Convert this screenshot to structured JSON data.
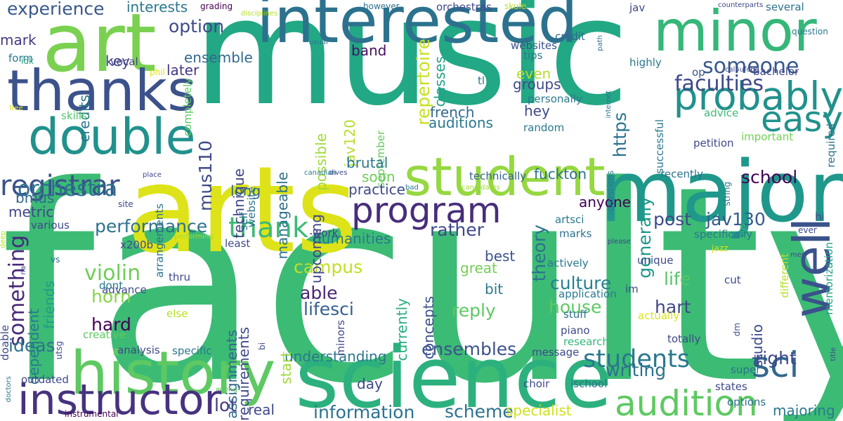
{
  "cloud": {
    "words": [
      {
        "text": "faculty",
        "color": "#3cbb75"
      },
      {
        "text": "music",
        "color": "#22a884"
      },
      {
        "text": "arts",
        "color": "#dde318"
      },
      {
        "text": "science",
        "color": "#2cb17e"
      },
      {
        "text": "major",
        "color": "#1f988b"
      },
      {
        "text": "interested",
        "color": "#2c728e"
      },
      {
        "text": "art",
        "color": "#7ad151"
      },
      {
        "text": "history",
        "color": "#5ec962"
      },
      {
        "text": "thanks",
        "color": "#3b528b"
      },
      {
        "text": "double",
        "color": "#21918c"
      },
      {
        "text": "student",
        "color": "#95d840"
      },
      {
        "text": "minor",
        "color": "#35b779"
      },
      {
        "text": "instructor",
        "color": "#46327e"
      },
      {
        "text": "well",
        "color": "#3b528b"
      },
      {
        "text": "probably",
        "color": "#21918c"
      },
      {
        "text": "audition",
        "color": "#5ec962"
      },
      {
        "text": "program",
        "color": "#472d7b"
      },
      {
        "text": "easy",
        "color": "#21918c"
      },
      {
        "text": "sci",
        "color": "#31688e"
      },
      {
        "text": "registrar",
        "color": "#3b528b"
      },
      {
        "text": "thank",
        "color": "#3cbb75"
      },
      {
        "text": "students",
        "color": "#2a788e"
      },
      {
        "text": "someone",
        "color": "#38588c"
      },
      {
        "text": "faculties",
        "color": "#3e4989"
      },
      {
        "text": "orchestra",
        "color": "#2c728e"
      },
      {
        "text": "performance",
        "color": "#2c728e"
      },
      {
        "text": "something",
        "color": "#472a7a"
      },
      {
        "text": "violin",
        "color": "#6ece58"
      },
      {
        "text": "experience",
        "color": "#38588c"
      },
      {
        "text": "option",
        "color": "#3e4989"
      },
      {
        "text": "ensembles",
        "color": "#3b528b"
      },
      {
        "text": "rather",
        "color": "#3e4989"
      },
      {
        "text": "post",
        "color": "#3e4989"
      },
      {
        "text": "culture",
        "color": "#277f8e"
      },
      {
        "text": "house",
        "color": "#5ec962"
      },
      {
        "text": "life",
        "color": "#54c568"
      },
      {
        "text": "hart",
        "color": "#404688"
      },
      {
        "text": "writing",
        "color": "#2c728e"
      },
      {
        "text": "right",
        "color": "#3e4989"
      },
      {
        "text": "school",
        "color": "#440154"
      },
      {
        "text": "jav130",
        "color": "#375b8d"
      },
      {
        "text": "campus",
        "color": "#c2df23"
      },
      {
        "text": "horn",
        "color": "#86d549"
      },
      {
        "text": "hard",
        "color": "#440154"
      },
      {
        "text": "able",
        "color": "#482475"
      },
      {
        "text": "lifesci",
        "color": "#35608d"
      },
      {
        "text": "reply",
        "color": "#5ec962"
      },
      {
        "text": "ideas",
        "color": "#2c728e"
      },
      {
        "text": "lot",
        "color": "#443983"
      },
      {
        "text": "information",
        "color": "#2c728e"
      },
      {
        "text": "scheme",
        "color": "#2c728e"
      },
      {
        "text": "specialist",
        "color": "#d0e11c"
      },
      {
        "text": "majoring",
        "color": "#2a788e"
      },
      {
        "text": "anyone",
        "color": "#440154"
      },
      {
        "text": "generally",
        "color": "#1f988b"
      },
      {
        "text": "https",
        "color": "#2c728e"
      },
      {
        "text": "theory",
        "color": "#2c728e"
      },
      {
        "text": "hey",
        "color": "#3e4989"
      },
      {
        "text": "groups",
        "color": "#3e4989"
      },
      {
        "text": "even",
        "color": "#b5de2b"
      },
      {
        "text": "repertoire",
        "color": "#c8e020"
      },
      {
        "text": "french",
        "color": "#31688e"
      },
      {
        "text": "auditions",
        "color": "#2a788e"
      },
      {
        "text": "mus110",
        "color": "#3e4989"
      },
      {
        "text": "technique",
        "color": "#404688"
      },
      {
        "text": "manageable",
        "color": "#2c728e"
      },
      {
        "text": "interests",
        "color": "#2a788e"
      },
      {
        "text": "band",
        "color": "#470e61"
      },
      {
        "text": "key",
        "color": "#404688"
      },
      {
        "text": "later",
        "color": "#453781"
      },
      {
        "text": "ensemble",
        "color": "#31688e"
      },
      {
        "text": "credits",
        "color": "#2a788e"
      },
      {
        "text": "mark",
        "color": "#443983"
      },
      {
        "text": "form",
        "color": "#2a788e"
      },
      {
        "text": "vocal",
        "color": "#433e85"
      },
      {
        "text": "skills",
        "color": "#52c569"
      },
      {
        "text": "soon",
        "color": "#6ece58"
      },
      {
        "text": "long",
        "color": "#31688e"
      },
      {
        "text": "bmus",
        "color": "#31688e"
      },
      {
        "text": "metric",
        "color": "#404688"
      },
      {
        "text": "friends",
        "color": "#1f9e89"
      },
      {
        "text": "dependent",
        "color": "#2a788e"
      },
      {
        "text": "assignments",
        "color": "#31688e"
      },
      {
        "text": "requirements",
        "color": "#3e4989"
      },
      {
        "text": "currently",
        "color": "#26ad81"
      },
      {
        "text": "concepts",
        "color": "#3b528b"
      },
      {
        "text": "humanities",
        "color": "#2a788e"
      },
      {
        "text": "great",
        "color": "#73d056"
      },
      {
        "text": "bit",
        "color": "#2a788e"
      },
      {
        "text": "best",
        "color": "#3b528b"
      },
      {
        "text": "possible",
        "color": "#a0da39"
      },
      {
        "text": "jav120",
        "color": "#b5de2b"
      },
      {
        "text": "september",
        "color": "#65cb5e"
      },
      {
        "text": "brutal",
        "color": "#2a788e"
      },
      {
        "text": "practice",
        "color": "#3e4989"
      },
      {
        "text": "upcoming",
        "color": "#414487"
      },
      {
        "text": "work",
        "color": "#404688"
      },
      {
        "text": "fuckton",
        "color": "#2c728e"
      },
      {
        "text": "tips",
        "color": "#2a788e"
      },
      {
        "text": "highly",
        "color": "#2a788e"
      },
      {
        "text": "classes",
        "color": "#20a386"
      },
      {
        "text": "tl",
        "color": "#2c728e"
      },
      {
        "text": "websites",
        "color": "#3b528b"
      },
      {
        "text": "credit",
        "color": "#31688e"
      },
      {
        "text": "op",
        "color": "#3b528b"
      },
      {
        "text": "bachelor",
        "color": "#3e4989"
      },
      {
        "text": "advice",
        "color": "#3cbb75"
      },
      {
        "text": "petition",
        "color": "#3e4989"
      },
      {
        "text": "important",
        "color": "#73d056"
      },
      {
        "text": "recently",
        "color": "#2c728e"
      },
      {
        "text": "successful",
        "color": "#2a788e"
      },
      {
        "text": "random",
        "color": "#2a788e"
      },
      {
        "text": "personally",
        "color": "#2a788e"
      },
      {
        "text": "technically",
        "color": "#33638d"
      },
      {
        "text": "specifically",
        "color": "#2a788e"
      },
      {
        "text": "actively",
        "color": "#2a788e"
      },
      {
        "text": "marks",
        "color": "#2c728e"
      },
      {
        "text": "unique",
        "color": "#3e4989"
      },
      {
        "text": "actually",
        "color": "#dde318"
      },
      {
        "text": "im",
        "color": "#3e4989"
      },
      {
        "text": "totally",
        "color": "#3e4989"
      },
      {
        "text": "cut",
        "color": "#3e4989"
      },
      {
        "text": "studio",
        "color": "#3e4989"
      },
      {
        "text": "super",
        "color": "#2c728e"
      },
      {
        "text": "states",
        "color": "#3e4989"
      },
      {
        "text": "options",
        "color": "#2c728e"
      },
      {
        "text": "understanding",
        "color": "#2a788e"
      },
      {
        "text": "message",
        "color": "#3e4989"
      },
      {
        "text": "piano",
        "color": "#3e4989"
      },
      {
        "text": "stuff",
        "color": "#2c728e"
      },
      {
        "text": "research",
        "color": "#35b779"
      },
      {
        "text": "application",
        "color": "#2a788e"
      },
      {
        "text": "artsci",
        "color": "#2a788e"
      },
      {
        "text": "day",
        "color": "#3e4989"
      },
      {
        "text": "choir",
        "color": "#3e4989"
      },
      {
        "text": "ischool",
        "color": "#2c728e"
      },
      {
        "text": "real",
        "color": "#3e4989"
      },
      {
        "text": "start",
        "color": "#a0da39"
      },
      {
        "text": "outdated",
        "color": "#3e4989"
      },
      {
        "text": "instrumental",
        "color": "#440154"
      },
      {
        "text": "creative",
        "color": "#5ec962"
      },
      {
        "text": "analysis",
        "color": "#3e4989"
      },
      {
        "text": "specific",
        "color": "#2a788e"
      },
      {
        "text": "advance",
        "color": "#3e4989"
      },
      {
        "text": "else",
        "color": "#b5de2b"
      },
      {
        "text": "thru",
        "color": "#3e4989"
      },
      {
        "text": "dont",
        "color": "#2a788e"
      },
      {
        "text": "x200b",
        "color": "#3e4989"
      },
      {
        "text": "least",
        "color": "#3e4989"
      },
      {
        "text": "self",
        "color": "#2c728e"
      },
      {
        "text": "website",
        "color": "#2c728e"
      },
      {
        "text": "site",
        "color": "#3e4989"
      },
      {
        "text": "arrangements",
        "color": "#2c728e"
      },
      {
        "text": "various",
        "color": "#3e4989"
      },
      {
        "text": "doable",
        "color": "#3e4989"
      },
      {
        "text": "idk",
        "color": "#20a386"
      },
      {
        "text": "phil",
        "color": "#dde318"
      },
      {
        "text": "grading",
        "color": "#440154"
      },
      {
        "text": "however",
        "color": "#2c728e"
      },
      {
        "text": "orchestras",
        "color": "#3e4989"
      },
      {
        "text": "skule",
        "color": "#b5de2b"
      },
      {
        "text": "jav",
        "color": "#3e4989"
      },
      {
        "text": "counterparts",
        "color": "#3e4989"
      },
      {
        "text": "several",
        "color": "#2c728e"
      },
      {
        "text": "question",
        "color": "#2a788e"
      },
      {
        "text": "path",
        "color": "#2c728e"
      },
      {
        "text": "cal5ufc6g",
        "color": "#3e4989"
      },
      {
        "text": "hi",
        "color": "#3e4989"
      },
      {
        "text": "memorization",
        "color": "#20a386"
      },
      {
        "text": "different",
        "color": "#b5de2b"
      },
      {
        "text": "title",
        "color": "#3e4989"
      },
      {
        "text": "string",
        "color": "#2c728e"
      },
      {
        "text": "questions",
        "color": "#2a788e"
      },
      {
        "text": "dm",
        "color": "#3e4989"
      },
      {
        "text": "ever",
        "color": "#3e4989"
      },
      {
        "text": "required",
        "color": "#2c728e"
      },
      {
        "text": "jazz",
        "color": "#dde318"
      },
      {
        "text": "med",
        "color": "#3e4989"
      },
      {
        "text": "things",
        "color": "#3cbb75"
      },
      {
        "text": "internet",
        "color": "#2c728e"
      },
      {
        "text": "please",
        "color": "#3e4989"
      },
      {
        "text": "performing",
        "color": "#a0da39"
      },
      {
        "text": "minors",
        "color": "#3e4989"
      },
      {
        "text": "bi",
        "color": "#3e4989"
      },
      {
        "text": "utsg",
        "color": "#3e4989"
      },
      {
        "text": "vs",
        "color": "#2c728e"
      },
      {
        "text": "na",
        "color": "#3e4989"
      },
      {
        "text": "deep",
        "color": "#b5de2b"
      },
      {
        "text": "doctors",
        "color": "#2a788e"
      },
      {
        "text": "wrong",
        "color": "#5ec962"
      },
      {
        "text": "place",
        "color": "#3e4989"
      },
      {
        "text": "canadian",
        "color": "#2a788e"
      },
      {
        "text": "dives",
        "color": "#3e4989"
      },
      {
        "text": "bad",
        "color": "#2a788e"
      },
      {
        "text": "candidates",
        "color": "#a0da39"
      },
      {
        "text": "disciplines",
        "color": "#b5de2b"
      },
      {
        "text": "usual",
        "color": "#2a788e"
      },
      {
        "text": "completely",
        "color": "#5ec962"
      },
      {
        "text": "free",
        "color": "#dde318"
      },
      {
        "text": "simply",
        "color": "#2c728e"
      }
    ]
  }
}
